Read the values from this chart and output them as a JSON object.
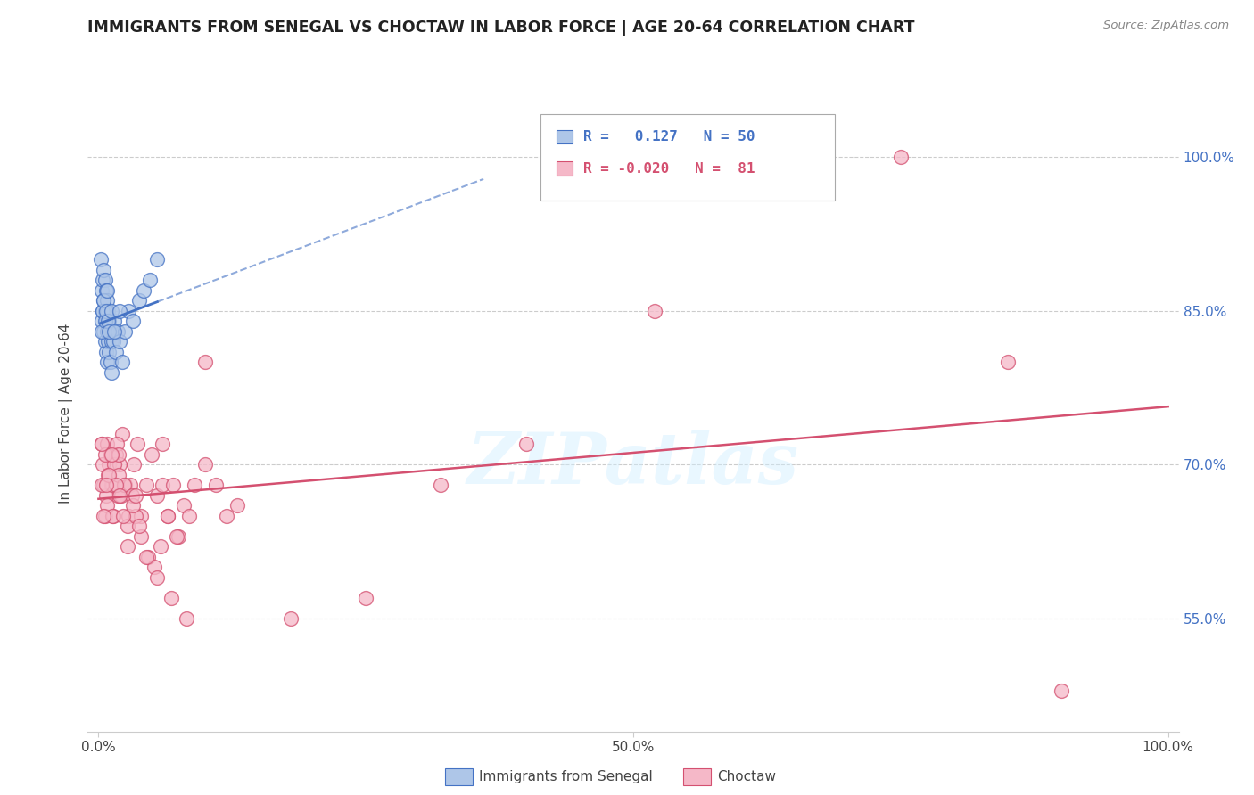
{
  "title": "IMMIGRANTS FROM SENEGAL VS CHOCTAW IN LABOR FORCE | AGE 20-64 CORRELATION CHART",
  "source": "Source: ZipAtlas.com",
  "ylabel": "In Labor Force | Age 20-64",
  "xlim": [
    -0.01,
    1.01
  ],
  "ylim": [
    0.44,
    1.06
  ],
  "y_ticks": [
    0.55,
    0.7,
    0.85,
    1.0
  ],
  "y_tick_labels": [
    "55.0%",
    "70.0%",
    "85.0%",
    "100.0%"
  ],
  "x_ticks": [
    0.0,
    0.5,
    1.0
  ],
  "x_tick_labels": [
    "0.0%",
    "50.0%",
    "100.0%"
  ],
  "color_senegal": "#aec6e8",
  "color_choctaw": "#f5b8c8",
  "edge_senegal": "#4472c4",
  "edge_choctaw": "#d45070",
  "trendline_senegal_color": "#4472c4",
  "trendline_choctaw_color": "#d45070",
  "background_color": "#ffffff",
  "watermark": "ZIPatlas",
  "senegal_x": [
    0.002,
    0.003,
    0.003,
    0.004,
    0.004,
    0.005,
    0.005,
    0.005,
    0.006,
    0.006,
    0.006,
    0.007,
    0.007,
    0.007,
    0.008,
    0.008,
    0.008,
    0.009,
    0.009,
    0.01,
    0.01,
    0.011,
    0.011,
    0.012,
    0.012,
    0.013,
    0.014,
    0.015,
    0.016,
    0.018,
    0.02,
    0.022,
    0.025,
    0.028,
    0.032,
    0.038,
    0.042,
    0.048,
    0.055,
    0.003,
    0.004,
    0.005,
    0.006,
    0.007,
    0.008,
    0.009,
    0.01,
    0.012,
    0.015,
    0.02
  ],
  "senegal_y": [
    0.9,
    0.87,
    0.84,
    0.88,
    0.85,
    0.89,
    0.86,
    0.83,
    0.88,
    0.85,
    0.82,
    0.87,
    0.84,
    0.81,
    0.86,
    0.83,
    0.8,
    0.85,
    0.82,
    0.84,
    0.81,
    0.83,
    0.8,
    0.82,
    0.79,
    0.83,
    0.82,
    0.84,
    0.81,
    0.83,
    0.82,
    0.8,
    0.83,
    0.85,
    0.84,
    0.86,
    0.87,
    0.88,
    0.9,
    0.83,
    0.85,
    0.86,
    0.84,
    0.85,
    0.87,
    0.84,
    0.83,
    0.85,
    0.83,
    0.85
  ],
  "choctaw_x": [
    0.003,
    0.005,
    0.006,
    0.008,
    0.01,
    0.012,
    0.014,
    0.016,
    0.018,
    0.02,
    0.022,
    0.025,
    0.028,
    0.03,
    0.033,
    0.036,
    0.04,
    0.045,
    0.05,
    0.055,
    0.06,
    0.065,
    0.07,
    0.075,
    0.08,
    0.085,
    0.09,
    0.1,
    0.11,
    0.12,
    0.004,
    0.007,
    0.009,
    0.011,
    0.013,
    0.015,
    0.017,
    0.019,
    0.021,
    0.024,
    0.027,
    0.031,
    0.035,
    0.04,
    0.046,
    0.052,
    0.058,
    0.065,
    0.073,
    0.082,
    0.003,
    0.006,
    0.008,
    0.01,
    0.013,
    0.016,
    0.019,
    0.023,
    0.027,
    0.032,
    0.038,
    0.045,
    0.055,
    0.068,
    0.13,
    0.25,
    0.4,
    0.52,
    0.75,
    0.85,
    0.9,
    0.003,
    0.005,
    0.007,
    0.012,
    0.02,
    0.035,
    0.06,
    0.1,
    0.18,
    0.32
  ],
  "choctaw_y": [
    0.72,
    0.68,
    0.65,
    0.72,
    0.7,
    0.68,
    0.65,
    0.71,
    0.67,
    0.7,
    0.73,
    0.68,
    0.65,
    0.68,
    0.7,
    0.72,
    0.65,
    0.68,
    0.71,
    0.67,
    0.68,
    0.65,
    0.68,
    0.63,
    0.66,
    0.65,
    0.68,
    0.7,
    0.68,
    0.65,
    0.7,
    0.67,
    0.69,
    0.71,
    0.68,
    0.7,
    0.72,
    0.69,
    0.67,
    0.68,
    0.64,
    0.67,
    0.65,
    0.63,
    0.61,
    0.6,
    0.62,
    0.65,
    0.63,
    0.55,
    0.68,
    0.71,
    0.66,
    0.69,
    0.65,
    0.68,
    0.71,
    0.65,
    0.62,
    0.66,
    0.64,
    0.61,
    0.59,
    0.57,
    0.66,
    0.57,
    0.72,
    0.85,
    1.0,
    0.8,
    0.48,
    0.72,
    0.65,
    0.68,
    0.71,
    0.67,
    0.67,
    0.72,
    0.8,
    0.55,
    0.68
  ]
}
